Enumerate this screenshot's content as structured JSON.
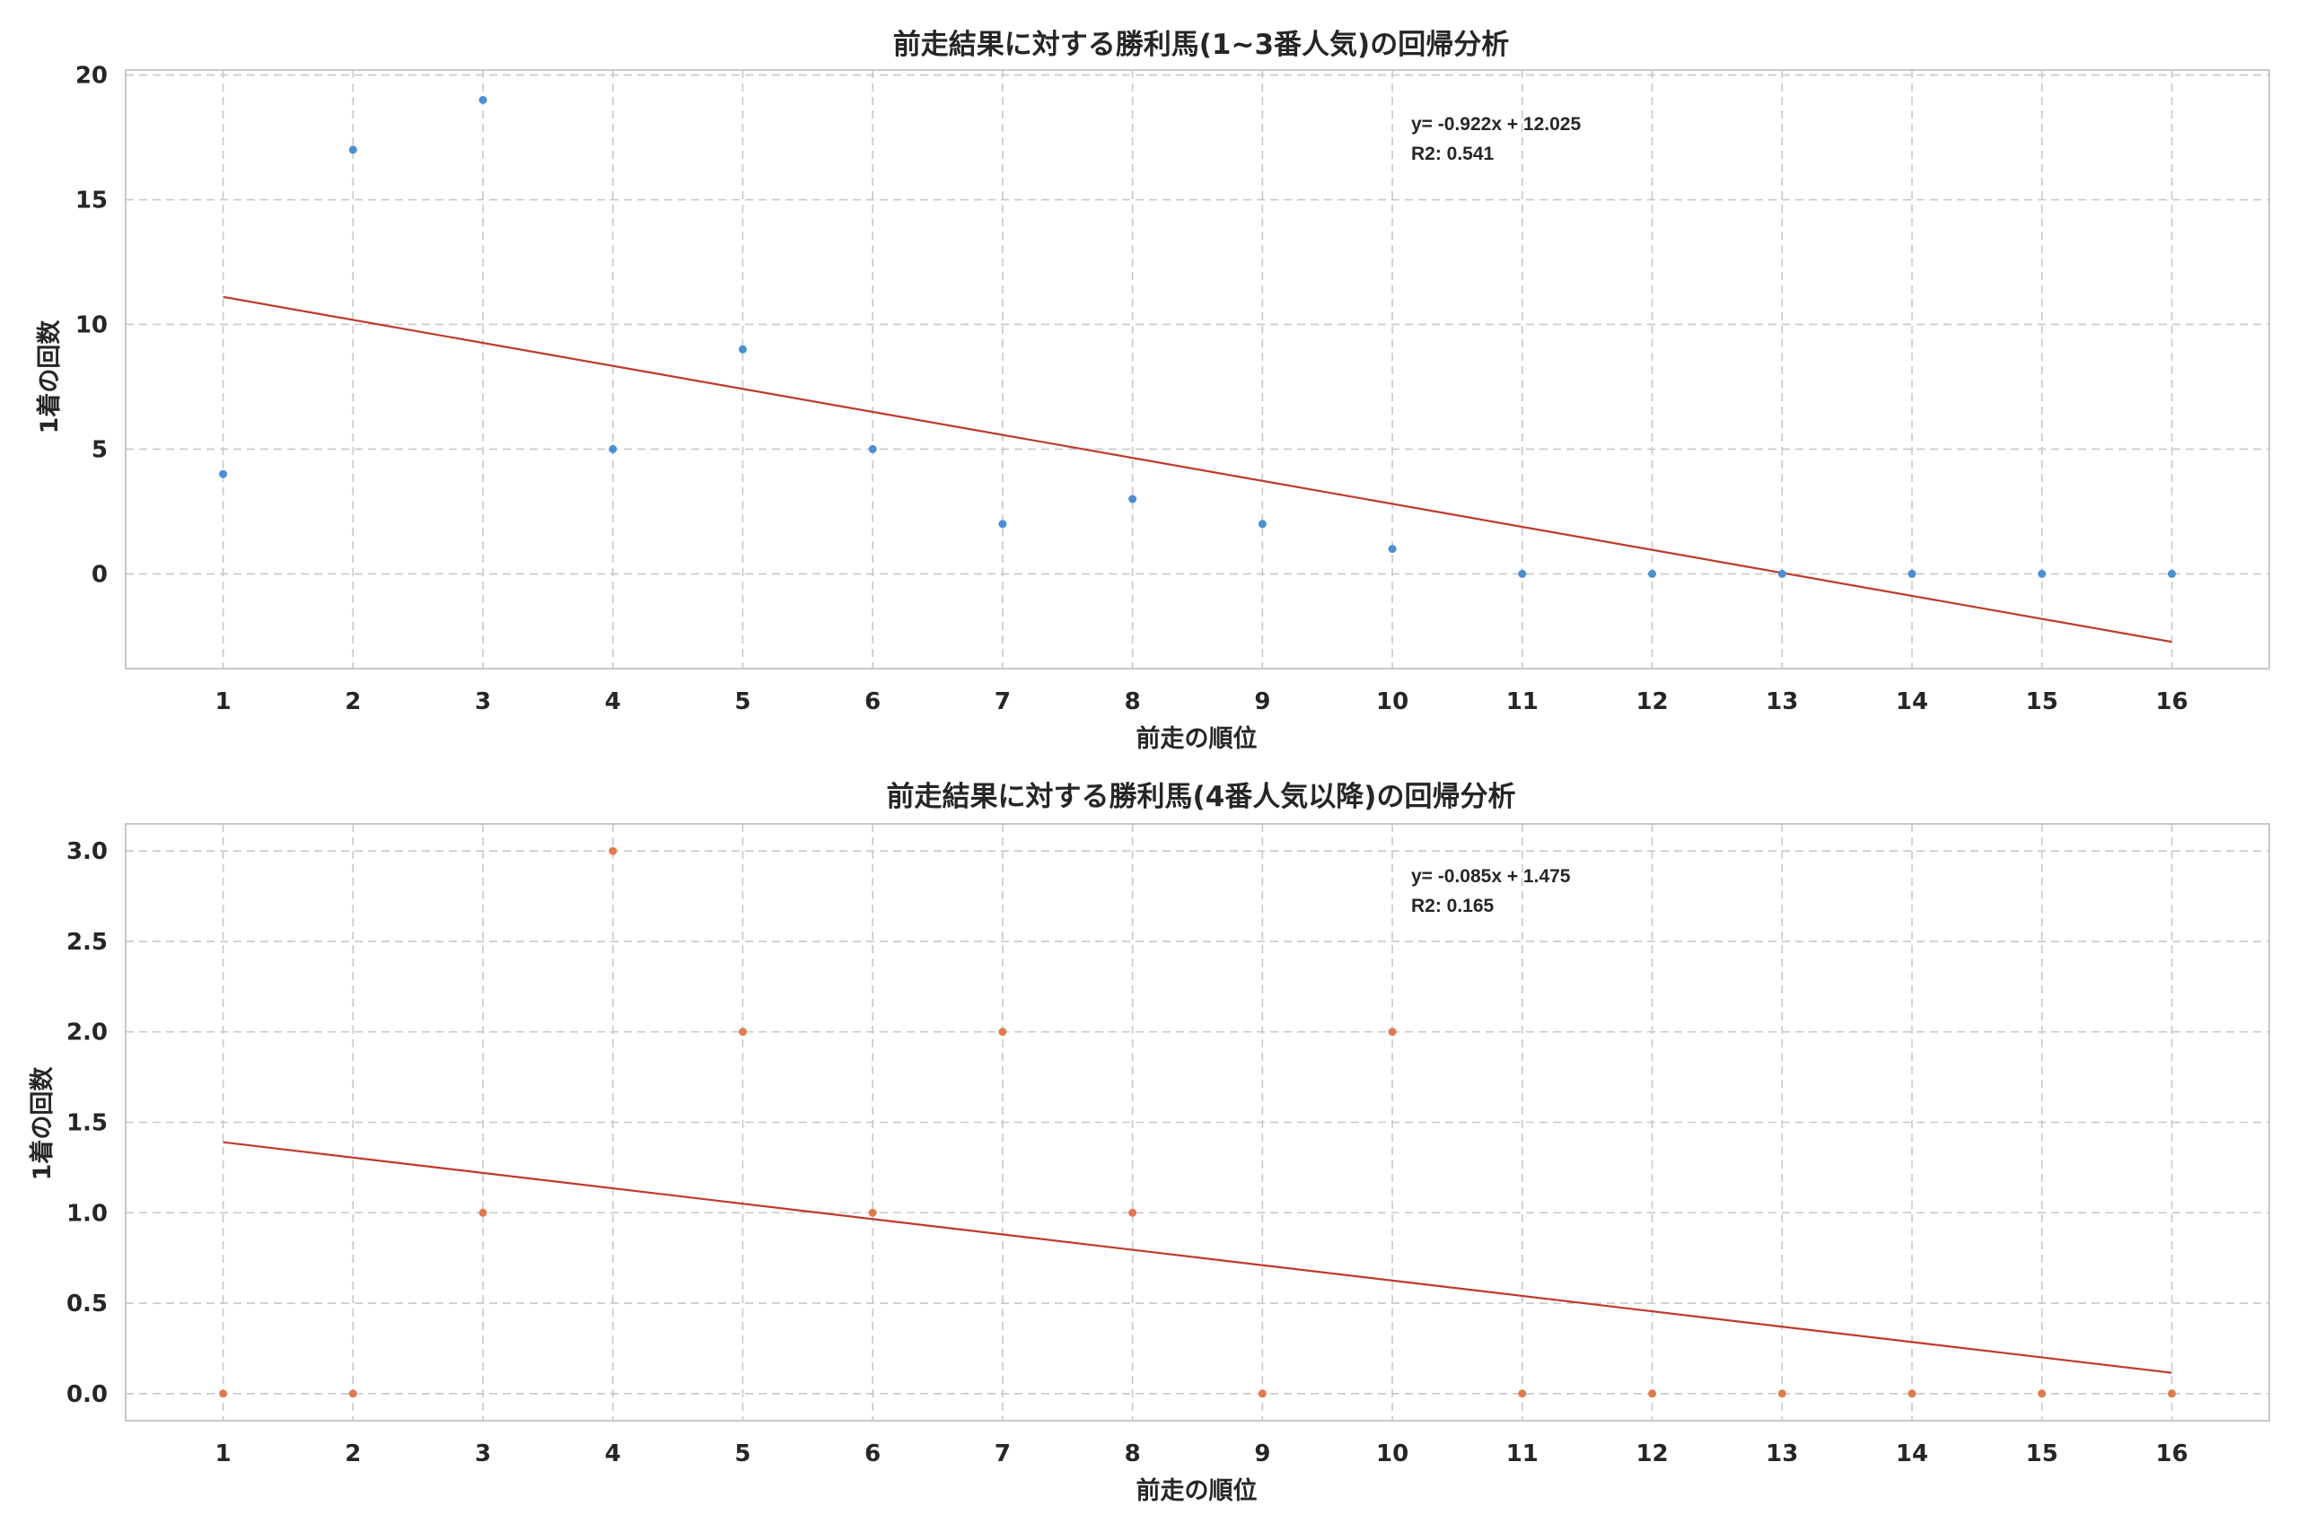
{
  "chart_data": [
    {
      "type": "scatter",
      "title": "前走結果に対する勝利馬(1~3番人気)の回帰分析",
      "xlabel": "前走の順位",
      "ylabel": "1着の回数",
      "x": [
        1,
        2,
        3,
        4,
        5,
        6,
        7,
        8,
        9,
        10,
        11,
        12,
        13,
        14,
        15,
        16
      ],
      "y": [
        4,
        17,
        19,
        5,
        9,
        5,
        2,
        3,
        2,
        1,
        0,
        0,
        0,
        0,
        0,
        0
      ],
      "xlim": [
        0.25,
        16.75
      ],
      "ylim": [
        -3.8,
        20.2
      ],
      "xticks": [
        "1",
        "2",
        "3",
        "4",
        "5",
        "6",
        "7",
        "8",
        "9",
        "10",
        "11",
        "12",
        "13",
        "14",
        "15",
        "16"
      ],
      "yticks": [
        "0",
        "5",
        "10",
        "15",
        "20"
      ],
      "ytick_values": [
        0,
        5,
        10,
        15,
        20
      ],
      "regression": {
        "slope": -0.922,
        "intercept": 12.025
      },
      "equation_text": "y= -0.922x + 12.025",
      "r2_text": "R2: 0.541",
      "point_color": "#4a8fd1",
      "line_color": "#c0392b",
      "grid": true
    },
    {
      "type": "scatter",
      "title": "前走結果に対する勝利馬(4番人気以降)の回帰分析",
      "xlabel": "前走の順位",
      "ylabel": "1着の回数",
      "x": [
        1,
        2,
        3,
        4,
        5,
        6,
        7,
        8,
        9,
        10,
        11,
        12,
        13,
        14,
        15,
        16
      ],
      "y": [
        0,
        0,
        1,
        3,
        2,
        1,
        2,
        1,
        0,
        2,
        0,
        0,
        0,
        0,
        0,
        0
      ],
      "xlim": [
        0.25,
        16.75
      ],
      "ylim": [
        -0.15,
        3.15
      ],
      "xticks": [
        "1",
        "2",
        "3",
        "4",
        "5",
        "6",
        "7",
        "8",
        "9",
        "10",
        "11",
        "12",
        "13",
        "14",
        "15",
        "16"
      ],
      "yticks": [
        "0.0",
        "0.5",
        "1.0",
        "1.5",
        "2.0",
        "2.5",
        "3.0"
      ],
      "ytick_values": [
        0,
        0.5,
        1,
        1.5,
        2,
        2.5,
        3
      ],
      "regression": {
        "slope": -0.085,
        "intercept": 1.475
      },
      "equation_text": "y= -0.085x + 1.475",
      "r2_text": "R2: 0.165",
      "point_color": "#e07b4f",
      "line_color": "#c0392b",
      "grid": true
    }
  ]
}
